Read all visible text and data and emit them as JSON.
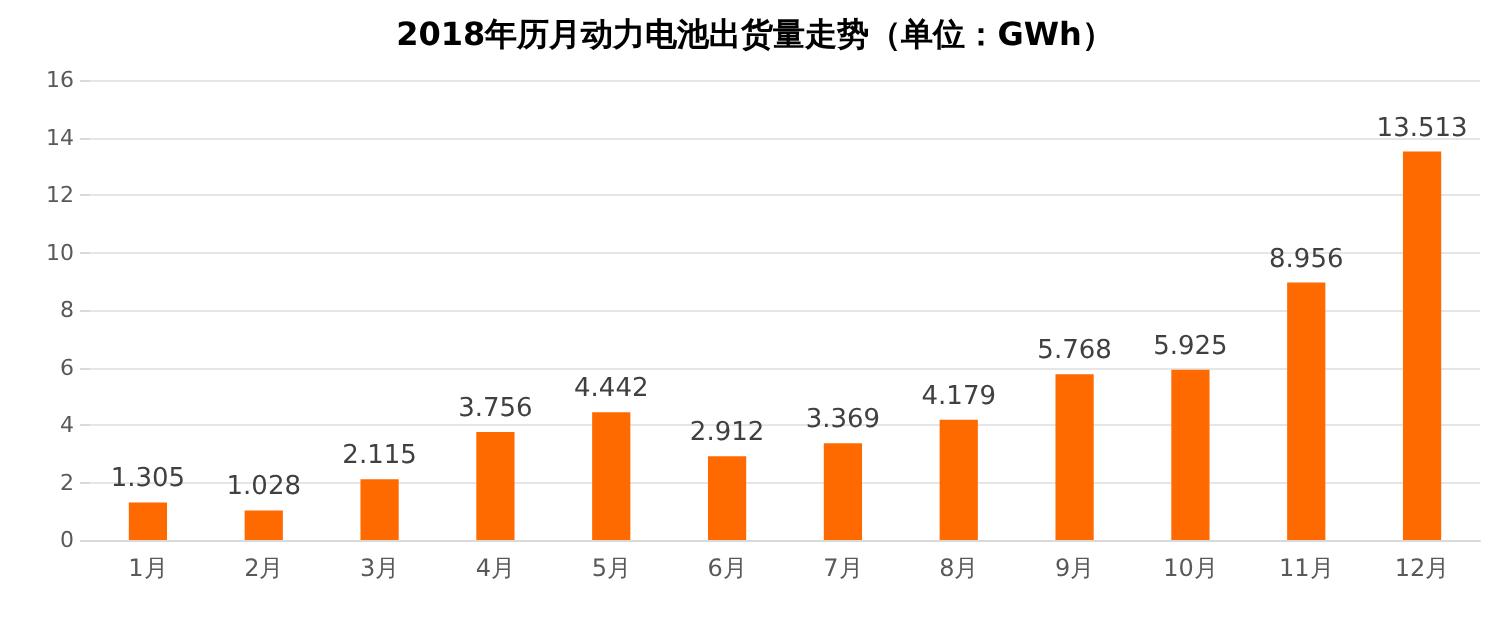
{
  "chart_data": {
    "type": "bar",
    "title": "2018年历月动力电池出货量走势（单位：GWh）",
    "categories": [
      "1月",
      "2月",
      "3月",
      "4月",
      "5月",
      "6月",
      "7月",
      "8月",
      "9月",
      "10月",
      "11月",
      "12月"
    ],
    "values": [
      1.305,
      1.028,
      2.115,
      3.756,
      4.442,
      2.912,
      3.369,
      4.179,
      5.768,
      5.925,
      8.956,
      13.513
    ],
    "color": "#ff6a00",
    "ylim": [
      0,
      16
    ],
    "yticks": [
      0,
      2,
      4,
      6,
      8,
      10,
      12,
      14,
      16
    ],
    "grid": "y",
    "data_labels": true
  }
}
